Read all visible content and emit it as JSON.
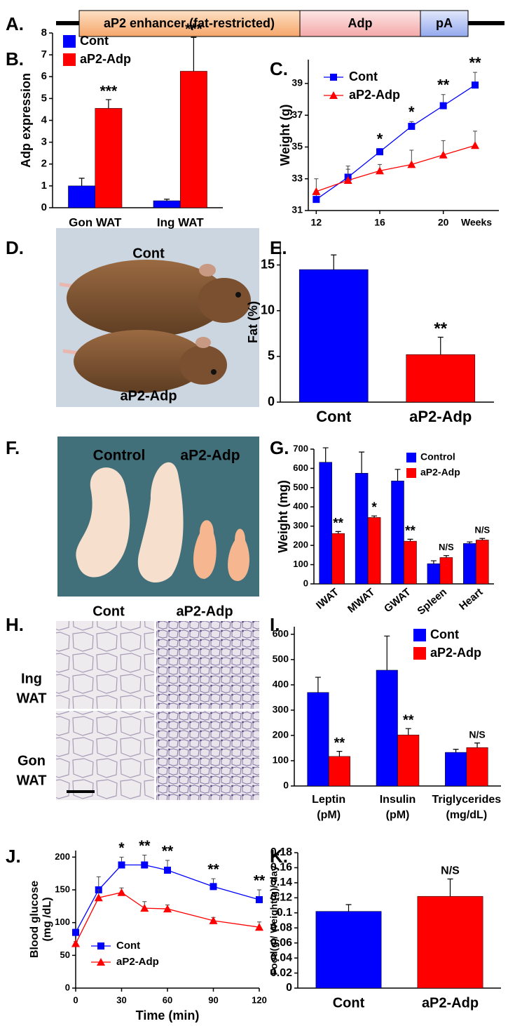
{
  "panel_labels": [
    "A.",
    "B.",
    "C.",
    "D.",
    "E.",
    "F.",
    "G.",
    "H.",
    "I.",
    "J.",
    "K."
  ],
  "construct": {
    "segments": [
      "aP2 enhancer (fat-restricted)",
      "Adp",
      "pA"
    ]
  },
  "photo_D": {
    "labels": [
      "Cont",
      "aP2-Adp"
    ]
  },
  "photo_F": {
    "labels": [
      "Control",
      "aP2-Adp"
    ]
  },
  "histology_H": {
    "columns": [
      "Cont",
      "aP2-Adp"
    ],
    "rows": [
      [
        "Ing",
        "WAT"
      ],
      [
        "Gon",
        "WAT"
      ]
    ]
  },
  "chart_data": [
    {
      "type": "bar",
      "y_label": "Adp expression",
      "legend": "upper left",
      "categories": [
        "Gon WAT",
        "Ing WAT"
      ],
      "series": [
        {
          "name": "Cont",
          "color": "#0000ff",
          "values": [
            1.0,
            0.32
          ],
          "errors": [
            0.35,
            0.07
          ]
        },
        {
          "name": "aP2-Adp",
          "color": "#ff0000",
          "values": [
            4.55,
            6.25
          ],
          "errors": [
            0.4,
            1.55
          ],
          "significance": [
            "***",
            "***"
          ]
        }
      ],
      "ylim": [
        0,
        8
      ],
      "yticks": [
        0,
        1,
        2,
        3,
        4,
        5,
        6,
        7,
        8
      ]
    },
    {
      "type": "line",
      "y_label": "Weight (g)",
      "x_label": "Weeks",
      "legend": "upper left",
      "x": [
        12,
        14,
        16,
        18,
        20,
        22
      ],
      "series": [
        {
          "name": "Cont",
          "color": "#0000ff",
          "marker": "square",
          "values": [
            31.7,
            33.1,
            34.7,
            36.3,
            37.6,
            38.9
          ],
          "errors": [
            0.3,
            0.5,
            0.2,
            0.3,
            0.7,
            0.8
          ],
          "significance": [
            null,
            null,
            "*",
            "*",
            "**",
            "**"
          ]
        },
        {
          "name": "aP2-Adp",
          "color": "#ff0000",
          "marker": "triangle",
          "values": [
            32.2,
            32.9,
            33.5,
            33.9,
            34.5,
            35.1
          ],
          "errors": [
            0.8,
            0.9,
            0.4,
            0.9,
            0.9,
            0.9
          ]
        }
      ],
      "xlim": [
        11.5,
        23.5
      ],
      "xticks": [
        12,
        16,
        20
      ],
      "ylim": [
        31,
        40.5
      ],
      "yticks": [
        31,
        33,
        35,
        37,
        39
      ]
    },
    {
      "type": "bar",
      "y_label": "Fat (%)",
      "categories": [
        "Cont",
        "aP2-Adp"
      ],
      "series": [
        {
          "color": "#0000ff",
          "values": [
            14.5,
            null
          ],
          "errors": [
            1.6,
            null
          ]
        },
        {
          "color": "#ff0000",
          "values": [
            null,
            5.2
          ],
          "errors": [
            null,
            1.9
          ],
          "significance": [
            null,
            "**"
          ]
        }
      ],
      "ylim": [
        0,
        17.5
      ],
      "yticks": [
        0,
        5,
        10,
        15
      ]
    },
    {
      "type": "bar",
      "y_label": "Weight (mg)",
      "legend": "upper right",
      "categories": [
        "IWAT",
        "MWAT",
        "GWAT",
        "Spleen",
        "Heart"
      ],
      "series": [
        {
          "name": "Control",
          "color": "#0000ff",
          "values": [
            632,
            575,
            535,
            105,
            210
          ],
          "errors": [
            75,
            110,
            60,
            15,
            8
          ]
        },
        {
          "name": "aP2-Adp",
          "color": "#ff0000",
          "values": [
            262,
            345,
            222,
            137,
            228
          ],
          "errors": [
            10,
            8,
            10,
            10,
            8
          ],
          "significance": [
            "**",
            "*",
            "**",
            "N/S",
            "N/S"
          ]
        }
      ],
      "ylim": [
        0,
        700
      ],
      "yticks": [
        0,
        100,
        200,
        300,
        400,
        500,
        600,
        700
      ]
    },
    {
      "type": "bar",
      "legend": "upper right",
      "categories": [
        [
          "Leptin",
          "(pM)"
        ],
        [
          "Insulin",
          "(pM)"
        ],
        [
          "Triglycerides",
          "(mg/dL)"
        ]
      ],
      "series": [
        {
          "name": "Cont",
          "color": "#0000ff",
          "values": [
            370,
            458,
            133
          ],
          "errors": [
            60,
            135,
            12
          ]
        },
        {
          "name": "aP2-Adp",
          "color": "#ff0000",
          "values": [
            117,
            202,
            152
          ],
          "errors": [
            20,
            25,
            18
          ],
          "significance": [
            "**",
            "**",
            "N/S"
          ]
        }
      ],
      "ylim": [
        0,
        630
      ],
      "yticks": [
        0,
        100,
        200,
        300,
        400,
        500,
        600
      ]
    },
    {
      "type": "line",
      "y_label": [
        "Blood glucose",
        "(mg /dL)"
      ],
      "x_label": "Time (min)",
      "legend": "lower left",
      "x": [
        0,
        15,
        30,
        45,
        60,
        90,
        120
      ],
      "series": [
        {
          "name": "Cont",
          "color": "#0000ff",
          "marker": "square",
          "values": [
            85,
            150,
            188,
            188,
            180,
            155,
            135
          ],
          "errors": [
            5,
            20,
            12,
            15,
            15,
            12,
            15
          ],
          "significance": [
            null,
            null,
            "*",
            "**",
            "**",
            "**",
            "**"
          ]
        },
        {
          "name": "aP2-Adp",
          "color": "#ff0000",
          "marker": "triangle",
          "values": [
            68,
            138,
            146,
            122,
            121,
            103,
            93
          ],
          "errors": [
            3,
            12,
            7,
            10,
            6,
            5,
            8
          ]
        }
      ],
      "xlim": [
        0,
        120
      ],
      "xticks": [
        0,
        30,
        60,
        90,
        120
      ],
      "ylim": [
        0,
        210
      ],
      "yticks": [
        0,
        50,
        100,
        150,
        200
      ]
    },
    {
      "type": "bar",
      "y_label": "Food(g)/ Weight(g)/ day",
      "categories": [
        "Cont",
        "aP2-Adp"
      ],
      "series": [
        {
          "color": "#0000ff",
          "values": [
            0.102,
            null
          ],
          "errors": [
            0.009,
            null
          ]
        },
        {
          "color": "#ff0000",
          "values": [
            null,
            0.122
          ],
          "errors": [
            null,
            0.023
          ],
          "significance": [
            null,
            "N/S"
          ]
        }
      ],
      "ylim": [
        0,
        0.18
      ],
      "yticks": [
        0,
        0.02,
        0.04,
        0.06,
        0.08,
        0.1,
        0.12,
        0.14,
        0.16,
        0.18
      ]
    }
  ]
}
